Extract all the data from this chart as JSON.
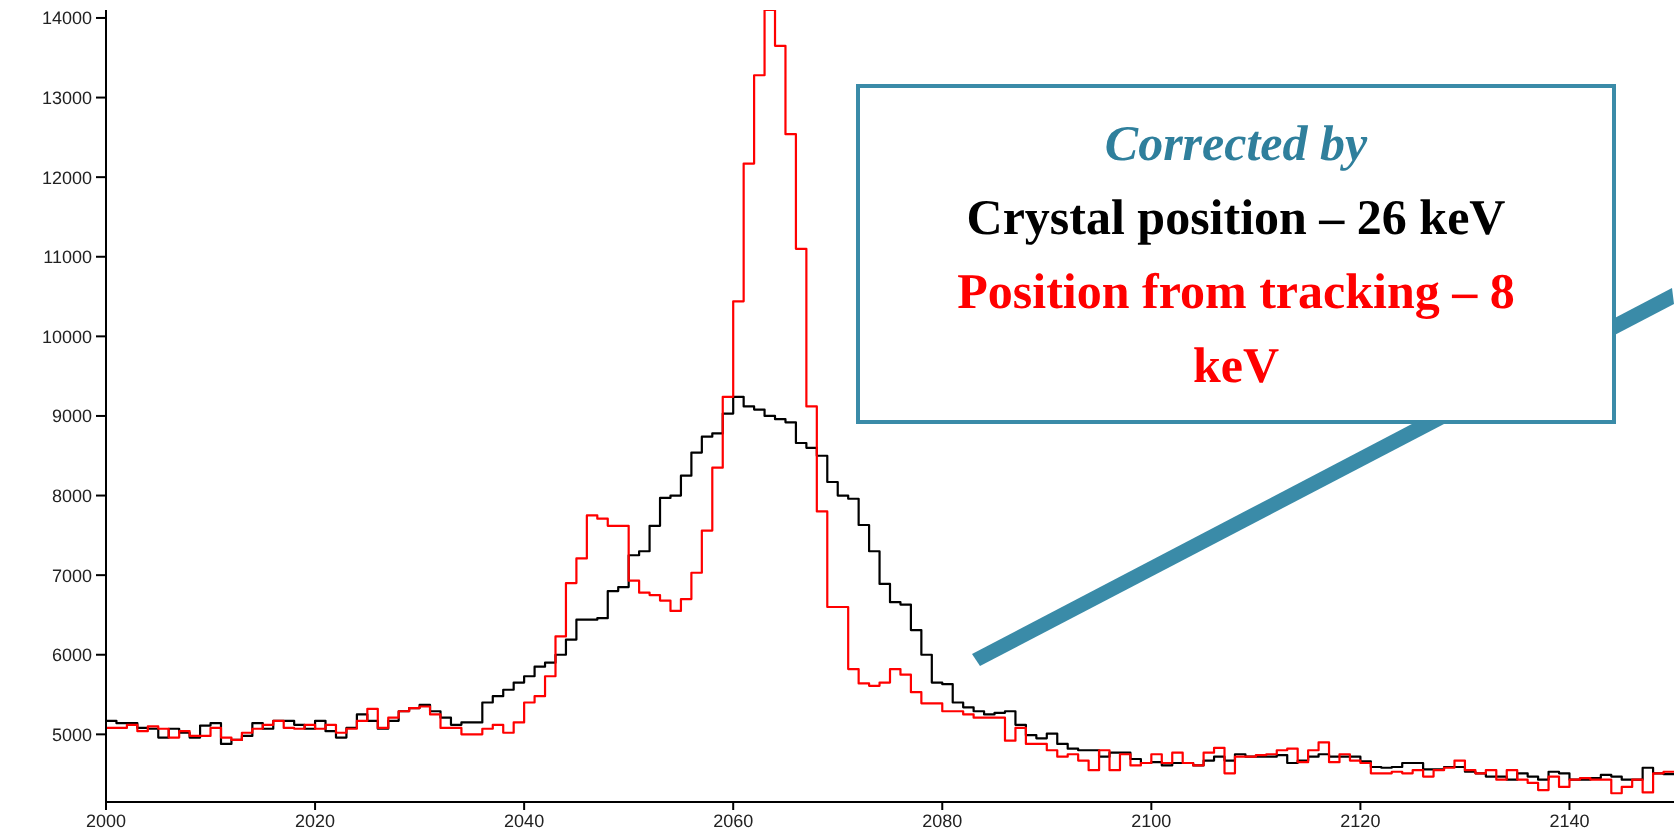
{
  "chart_data": {
    "type": "histogram",
    "legend_title": "Corrected by",
    "legend": "top right",
    "bins": [
      2000,
      2001,
      2002,
      2003,
      2004,
      2005,
      2006,
      2007,
      2008,
      2009,
      2010,
      2011,
      2012,
      2013,
      2014,
      2015,
      2016,
      2017,
      2018,
      2019,
      2020,
      2021,
      2022,
      2023,
      2024,
      2025,
      2026,
      2027,
      2028,
      2029,
      2030,
      2031,
      2032,
      2033,
      2034,
      2035,
      2036,
      2037,
      2038,
      2039,
      2040,
      2041,
      2042,
      2043,
      2044,
      2045,
      2046,
      2047,
      2048,
      2049,
      2050,
      2051,
      2052,
      2053,
      2054,
      2055,
      2056,
      2057,
      2058,
      2059,
      2060,
      2061,
      2062,
      2063,
      2064,
      2065,
      2066,
      2067,
      2068,
      2069,
      2070,
      2071,
      2072,
      2073,
      2074,
      2075,
      2076,
      2077,
      2078,
      2079,
      2080,
      2081,
      2082,
      2083,
      2084,
      2085,
      2086,
      2087,
      2088,
      2089,
      2090,
      2091,
      2092,
      2093,
      2094,
      2095,
      2096,
      2097,
      2098,
      2099,
      2100,
      2101,
      2102,
      2103,
      2104,
      2105,
      2106,
      2107,
      2108,
      2109,
      2110,
      2111,
      2112,
      2113,
      2114,
      2115,
      2116,
      2117,
      2118,
      2119,
      2120,
      2121,
      2122,
      2123,
      2124,
      2125,
      2126,
      2127,
      2128,
      2129,
      2130,
      2131,
      2132,
      2133,
      2134,
      2135,
      2136,
      2137,
      2138,
      2139,
      2140,
      2141,
      2142,
      2143,
      2144,
      2145,
      2146,
      2147,
      2148,
      2149,
      2150
    ],
    "series": [
      {
        "name": "Crystal position – 26 keV",
        "color": "#000000",
        "values": [
          5170,
          5140,
          5140,
          5080,
          5070,
          4960,
          5070,
          5020,
          4960,
          5110,
          5140,
          4880,
          4930,
          4980,
          5140,
          5070,
          5170,
          5170,
          5120,
          5070,
          5170,
          5040,
          4960,
          5080,
          5250,
          5170,
          5070,
          5170,
          5290,
          5330,
          5370,
          5290,
          5210,
          5120,
          5150,
          5150,
          5400,
          5480,
          5560,
          5650,
          5730,
          5850,
          5900,
          6000,
          6190,
          6440,
          6440,
          6460,
          6800,
          6850,
          7250,
          7300,
          7620,
          7970,
          8000,
          8250,
          8540,
          8740,
          8780,
          9030,
          9240,
          9120,
          9080,
          9000,
          8960,
          8920,
          8660,
          8600,
          8500,
          8170,
          8000,
          7960,
          7630,
          7300,
          6890,
          6660,
          6630,
          6310,
          6000,
          5650,
          5630,
          5400,
          5340,
          5290,
          5250,
          5270,
          5290,
          5120,
          4990,
          4950,
          5010,
          4880,
          4820,
          4800,
          4800,
          4720,
          4770,
          4770,
          4690,
          4640,
          4650,
          4610,
          4640,
          4640,
          4610,
          4670,
          4720,
          4670,
          4750,
          4720,
          4720,
          4720,
          4740,
          4640,
          4670,
          4720,
          4750,
          4720,
          4720,
          4720,
          4660,
          4590,
          4580,
          4590,
          4640,
          4640,
          4560,
          4560,
          4590,
          4590,
          4530,
          4510,
          4470,
          4470,
          4430,
          4510,
          4470,
          4430,
          4530,
          4510,
          4430,
          4430,
          4450,
          4490,
          4470,
          4430,
          4430,
          4580,
          4510,
          4500
        ]
      },
      {
        "name": "Position from tracking – 8 keV",
        "color": "#ff0000",
        "values": [
          5080,
          5080,
          5120,
          5040,
          5100,
          5070,
          4960,
          5040,
          4980,
          4980,
          5080,
          4960,
          4930,
          5020,
          5070,
          5120,
          5170,
          5080,
          5070,
          5120,
          5070,
          5120,
          5020,
          5070,
          5170,
          5320,
          5080,
          5210,
          5290,
          5330,
          5350,
          5250,
          5080,
          5080,
          5000,
          5000,
          5070,
          5120,
          5020,
          5150,
          5400,
          5480,
          5730,
          6230,
          6900,
          7210,
          7750,
          7710,
          7620,
          7620,
          6930,
          6780,
          6750,
          6680,
          6550,
          6700,
          7030,
          7560,
          8350,
          9240,
          10440,
          12170,
          13280,
          14100,
          13650,
          12540,
          11100,
          9120,
          7800,
          6600,
          6600,
          5820,
          5640,
          5610,
          5650,
          5820,
          5750,
          5530,
          5390,
          5390,
          5290,
          5290,
          5250,
          5210,
          5210,
          5210,
          4920,
          5080,
          4880,
          4880,
          4800,
          4720,
          4750,
          4670,
          4550,
          4800,
          4550,
          4750,
          4610,
          4640,
          4750,
          4640,
          4770,
          4640,
          4610,
          4770,
          4830,
          4510,
          4720,
          4720,
          4740,
          4750,
          4800,
          4820,
          4650,
          4800,
          4900,
          4650,
          4750,
          4670,
          4640,
          4510,
          4510,
          4530,
          4510,
          4550,
          4470,
          4550,
          4580,
          4670,
          4550,
          4510,
          4550,
          4430,
          4550,
          4430,
          4390,
          4300,
          4470,
          4340,
          4430,
          4450,
          4430,
          4430,
          4260,
          4340,
          4430,
          4270,
          4510,
          4530
        ]
      }
    ],
    "xlim": [
      2000,
      2150
    ],
    "xticks": [
      2000,
      2020,
      2040,
      2060,
      2080,
      2100,
      2120,
      2140
    ],
    "ylim": [
      4150,
      14100
    ],
    "yticks": [
      5000,
      6000,
      7000,
      8000,
      9000,
      10000,
      11000,
      12000,
      13000,
      14000
    ]
  }
}
